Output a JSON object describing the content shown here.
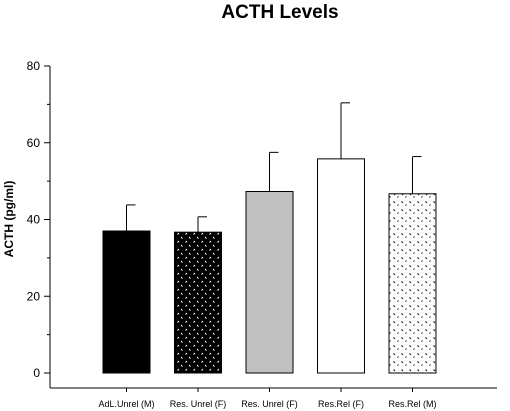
{
  "chart_data": {
    "type": "bar",
    "title": "ACTH Levels",
    "xlabel": "",
    "ylabel": "ACTH (pg/ml)",
    "ylim": [
      0,
      80
    ],
    "yticks": [
      0,
      20,
      40,
      60,
      80
    ],
    "grid": false,
    "legend": "none",
    "categories": [
      "AdL.Unrel (M)",
      "Res. Unrel (F)",
      "Res. Unrel (F)",
      "Res.Rel (F)",
      "Res.Rel (M)"
    ],
    "values": [
      37,
      36.7,
      47.3,
      55.8,
      46.7
    ],
    "errors": [
      6.8,
      4,
      10.2,
      14.6,
      9.7
    ],
    "fills": [
      "solid-black",
      "dense-black-pattern",
      "solid-gray",
      "white",
      "sparse-dot-pattern"
    ],
    "colors": {
      "black": "#000000",
      "gray": "#c0c0c0",
      "white": "#ffffff"
    }
  }
}
